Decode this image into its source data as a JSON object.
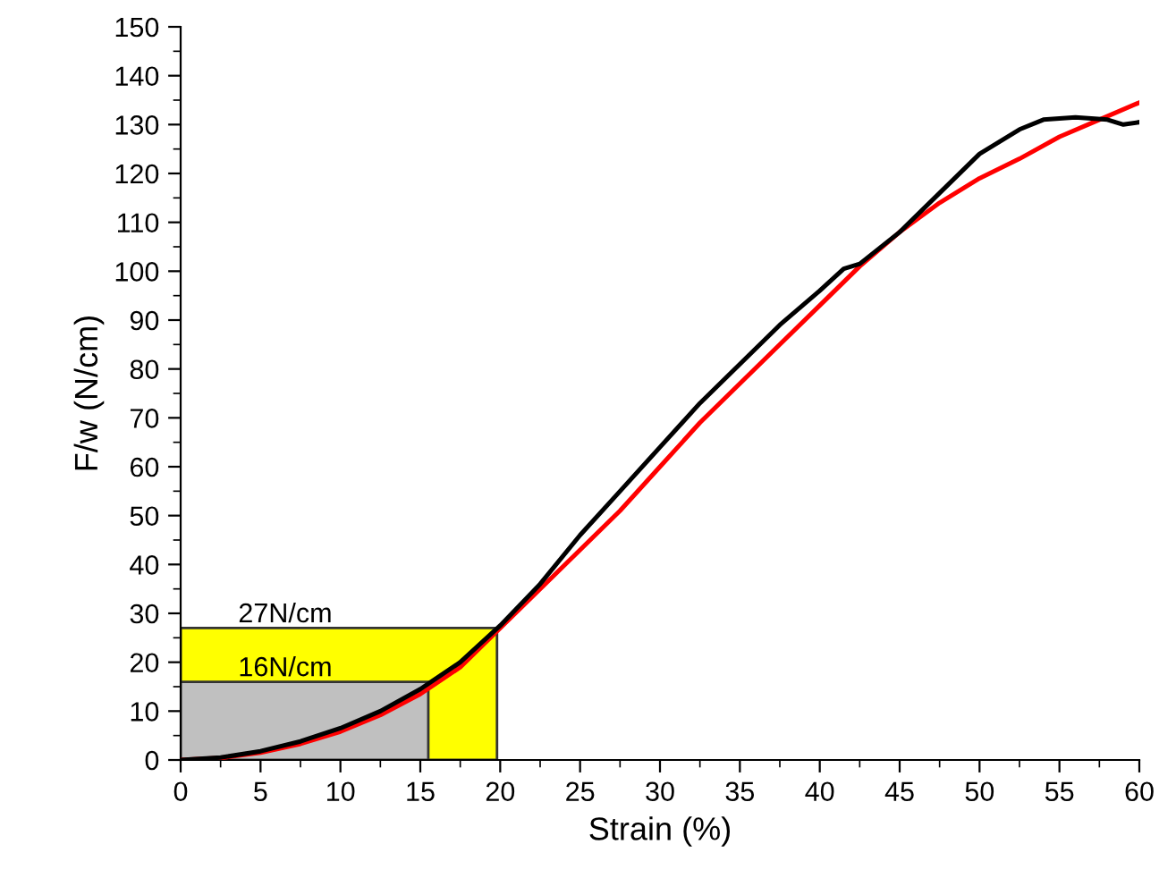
{
  "chart_data": {
    "type": "line",
    "xlabel": "Strain (%)",
    "ylabel": "F/w (N/cm)",
    "xlim": [
      0,
      60
    ],
    "xticks": [
      0,
      5,
      10,
      15,
      20,
      25,
      30,
      35,
      40,
      45,
      50,
      55,
      60
    ],
    "ylim": [
      0,
      150
    ],
    "yticks": [
      0,
      10,
      20,
      30,
      40,
      50,
      60,
      70,
      80,
      90,
      100,
      110,
      120,
      130,
      140,
      150
    ],
    "grid": false,
    "legend": false,
    "marker": "none",
    "line_style": "solid",
    "series": [
      {
        "type": "area",
        "color": "#ffff00",
        "x": [
          0,
          19.8
        ],
        "values": [
          27,
          27
        ]
      },
      {
        "type": "area",
        "color": "#c0c0c0",
        "x": [
          0,
          15.5
        ],
        "values": [
          16,
          16
        ]
      },
      {
        "color": "#ff0000",
        "x": [
          0,
          2.5,
          5,
          7.5,
          10,
          12.5,
          15,
          17.5,
          20,
          22.5,
          25,
          27.5,
          30,
          32.5,
          35,
          37.5,
          40,
          42.5,
          45,
          47.5,
          50,
          52.5,
          55,
          57.5,
          60
        ],
        "values": [
          0,
          0.4,
          1.5,
          3.3,
          5.8,
          9.2,
          13.5,
          19,
          27,
          35,
          43,
          51,
          60,
          69,
          77,
          85,
          93,
          101,
          108,
          114,
          119,
          123,
          127.5,
          131,
          134.5
        ]
      },
      {
        "color": "#000000",
        "x": [
          0,
          2.5,
          5,
          7.5,
          10,
          12.5,
          15,
          17.5,
          20,
          22.5,
          25,
          27.5,
          30,
          32.5,
          35,
          37.5,
          40,
          41.5,
          42.5,
          45,
          47.5,
          50,
          52.5,
          54,
          56,
          58,
          59,
          60
        ],
        "values": [
          0,
          0.5,
          1.8,
          3.8,
          6.5,
          10,
          14.5,
          20,
          27.5,
          36,
          46,
          55,
          64,
          73,
          81,
          89,
          96,
          100.5,
          101.5,
          108,
          116,
          124,
          129,
          131,
          131.5,
          131,
          130,
          130.5
        ]
      }
    ],
    "annotations": [
      "27N/cm",
      "16N/cm"
    ]
  }
}
